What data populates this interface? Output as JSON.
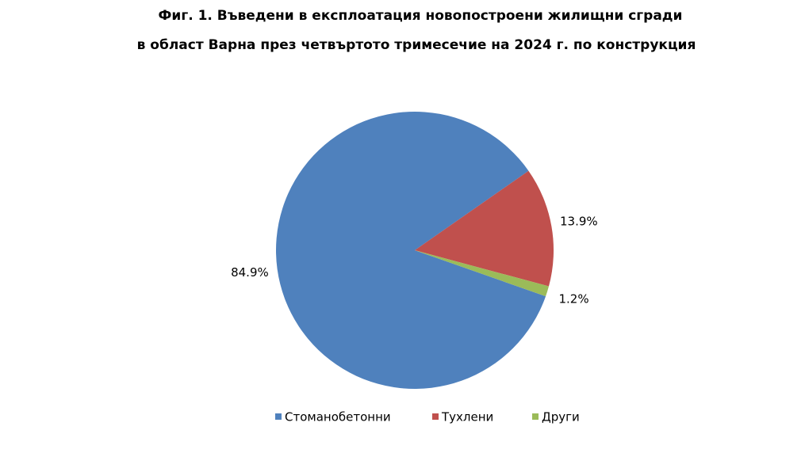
{
  "chart_data": {
    "type": "pie",
    "title": "Фиг. 1. Въведени в експлоатация новопостроени жилищни сгради",
    "subtitle": "в област Варна през четвъртото тримесечие на 2024 г. по конструкция",
    "categories": [
      "Стоманобетонни",
      "Тухлени",
      "Други"
    ],
    "values": [
      84.9,
      13.9,
      1.2
    ],
    "value_labels": [
      "84.9%",
      "13.9%",
      "1.2%"
    ],
    "colors": [
      "#4f81bd",
      "#c0504d",
      "#9bbb59"
    ],
    "legend": "bottom"
  }
}
